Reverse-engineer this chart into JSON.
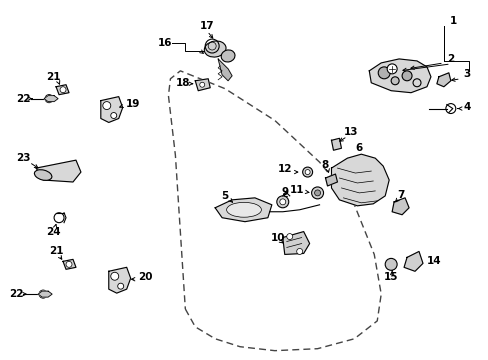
{
  "bg_color": "#ffffff",
  "fig_width": 4.89,
  "fig_height": 3.6,
  "dpi": 100,
  "lc": "#000000",
  "tc": "#000000",
  "lw": 0.8,
  "fs": 7.5
}
